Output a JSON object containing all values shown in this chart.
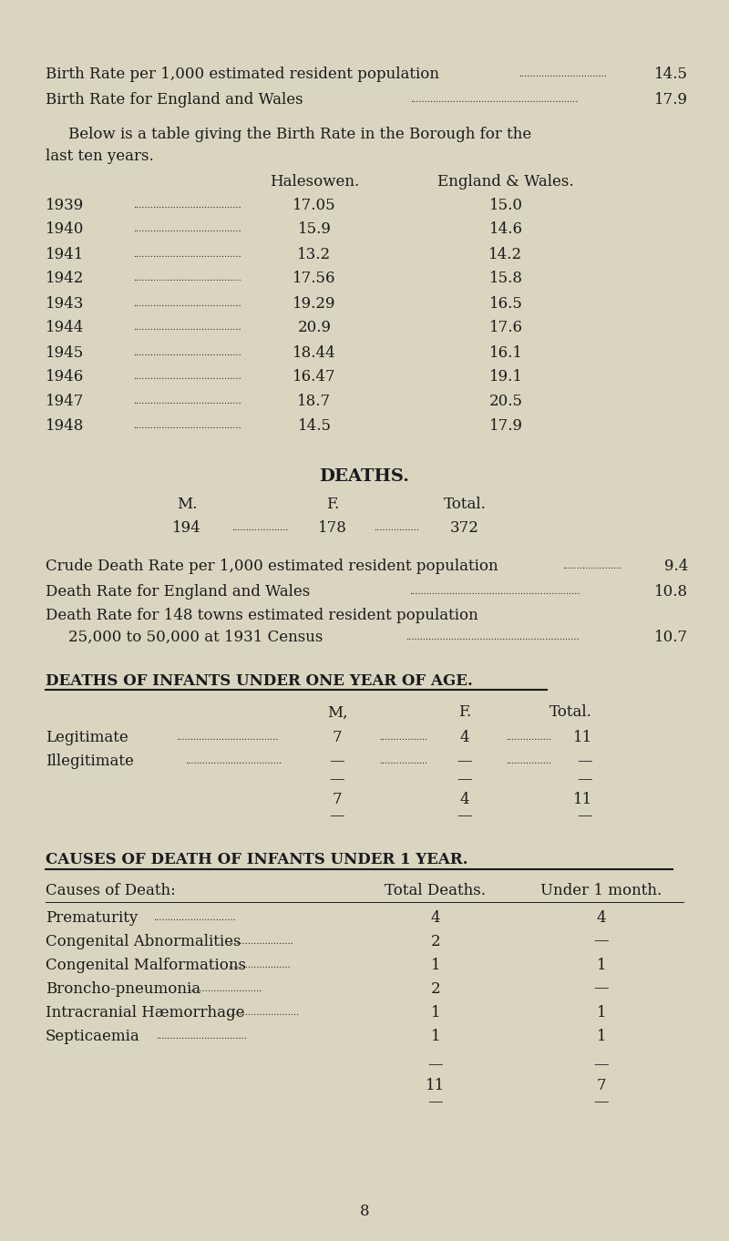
{
  "bg_color": "#d9d5c0",
  "text_color": "#1a1a1a",
  "page_number": "8",
  "birth_rate_borough": "14.5",
  "birth_rate_ew": "17.9",
  "birth_table_years": [
    "1939",
    "1940",
    "1941",
    "1942",
    "1943",
    "1944",
    "1945",
    "1946",
    "1947",
    "1948"
  ],
  "birth_table_halesowen": [
    "17.05",
    "15.9",
    "13.2",
    "17.56",
    "19.29",
    "20.9",
    "18.44",
    "16.47",
    "18.7",
    "14.5"
  ],
  "birth_table_ew": [
    "15.0",
    "14.6",
    "14.2",
    "15.8",
    "16.5",
    "17.6",
    "16.1",
    "19.1",
    "20.5",
    "17.9"
  ],
  "deaths_m": "194",
  "deaths_f": "178",
  "deaths_total": "372",
  "crude_death_rate": "9.4",
  "death_rate_ew": "10.8",
  "death_rate_148_towns": "10.7",
  "infant_legit_m": "7",
  "infant_legit_f": "4",
  "infant_legit_total": "11",
  "infant_illeg_m": "—",
  "infant_illeg_f": "—",
  "infant_illeg_total": "—",
  "infant_sum_m": "7",
  "infant_sum_f": "4",
  "infant_sum_total": "11",
  "causes": [
    "Prematurity",
    "Congenital Abnormalities",
    "Congenital Malformations",
    "Broncho-pneumonia",
    "Intracranial Hæmorrhage",
    "Septicaemia"
  ],
  "causes_total": [
    "4",
    "2",
    "1",
    "2",
    "1",
    "1"
  ],
  "causes_under1m": [
    "4",
    "—",
    "1",
    "—",
    "1",
    "1"
  ],
  "causes_grand_total": "11",
  "causes_grand_under1m": "7",
  "fig_width": 8.0,
  "fig_height": 13.62,
  "dpi": 100
}
